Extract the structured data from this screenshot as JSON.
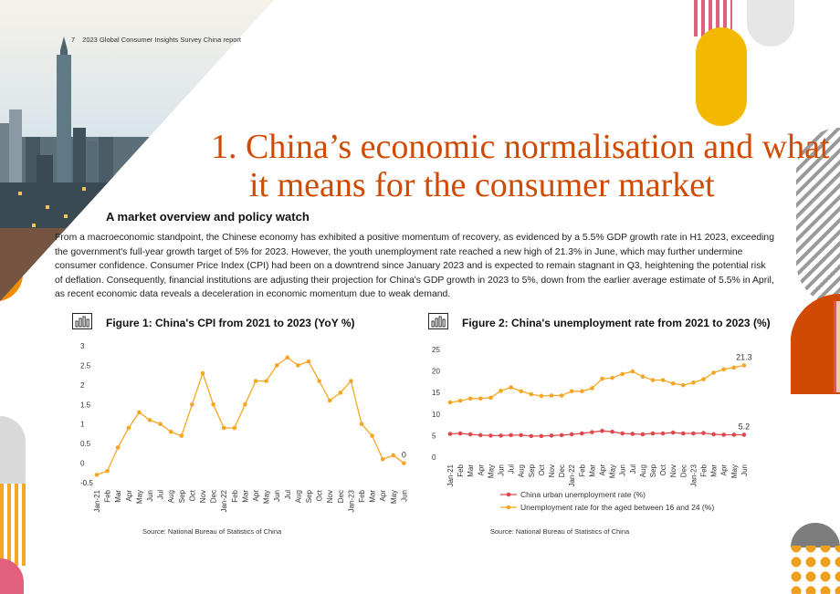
{
  "header": {
    "page_number": "7",
    "report_title": "2023 Global Consumer Insights Survey China report"
  },
  "section": {
    "number": "1.",
    "title_line1": "China’s economic normalisation and what",
    "title_line2": "it means for the consumer market"
  },
  "subheading": "A market overview and policy watch",
  "body_text": "From a macroeconomic standpoint, the Chinese economy has exhibited a positive momentum of recovery, as evidenced by a 5.5% GDP growth rate in H1 2023, exceeding the government's full-year growth target of 5% for 2023. However, the youth unemployment rate reached a new high of 21.3% in June, which may further undermine consumer confidence. Consumer Price Index (CPI) had been on a downtrend since January 2023 and is expected to remain stagnant in Q3, heightening the potential risk of deflation. Consequently, financial institutions are adjusting their projection for China's GDP growth in 2023 to 5%, down from the earlier average estimate of 5.5% in April, as recent economic data reveals a deceleration in economic momentum due to weak demand.",
  "figure1": {
    "title": "Figure 1: China's CPI from 2021 to 2023 (YoY %)",
    "source": "Source: National Bureau of Statistics of China"
  },
  "figure2": {
    "title": "Figure 2: China's unemployment rate from 2021 to 2023 (%)",
    "source": "Source: National Bureau of Statistics of China"
  },
  "colors": {
    "accent": "#d04a02",
    "cpi_line": "#f5a623",
    "urban_line": "#e0474c",
    "youth_line": "#f5a623",
    "pink": "#e0607e",
    "grey": "#d9d9d9"
  },
  "chart_data": [
    {
      "type": "line",
      "title": "Figure 1: China's CPI from 2021 to 2023 (YoY %)",
      "categories": [
        "Jan-21",
        "Feb",
        "Mar",
        "Apr",
        "May",
        "Jun",
        "Jul",
        "Aug",
        "Sep",
        "Oct",
        "Nov",
        "Dec",
        "Jan-22",
        "Feb",
        "Mar",
        "Apr",
        "May",
        "Jun",
        "Jul",
        "Aug",
        "Sep",
        "Oct",
        "Nov",
        "Dec",
        "Jan-23",
        "Feb",
        "Mar",
        "Apr",
        "May",
        "Jun"
      ],
      "series": [
        {
          "values": [
            -0.3,
            -0.2,
            0.4,
            0.9,
            1.3,
            1.1,
            1.0,
            0.8,
            0.7,
            1.5,
            2.3,
            1.5,
            0.9,
            0.9,
            1.5,
            2.1,
            2.1,
            2.5,
            2.7,
            2.5,
            2.6,
            2.1,
            1.6,
            1.8,
            2.1,
            1.0,
            0.7,
            0.1,
            0.2,
            0.0
          ]
        }
      ],
      "yticks": [
        "3",
        "2.5",
        "2",
        "1.5",
        "1",
        "0.5",
        "0",
        "-0.5"
      ],
      "ylim": [
        -0.5,
        3
      ],
      "data_labels": [
        {
          "index": 29,
          "text": "0"
        }
      ],
      "grid": false
    },
    {
      "type": "line",
      "title": "Figure 2: China's unemployment rate from 2021 to 2023 (%)",
      "categories": [
        "Jan-21",
        "Feb",
        "Mar",
        "Apr",
        "May",
        "Jun",
        "Jul",
        "Aug",
        "Sep",
        "Oct",
        "Nov",
        "Dec",
        "Jan-22",
        "Feb",
        "Mar",
        "Apr",
        "May",
        "Jun",
        "Jul",
        "Aug",
        "Sep",
        "Oct",
        "Nov",
        "Dec",
        "Jan-23",
        "Feb",
        "Mar",
        "Apr",
        "May",
        "Jun"
      ],
      "series": [
        {
          "name": "China urban unemployment rate (%)",
          "values": [
            5.4,
            5.5,
            5.3,
            5.1,
            5.0,
            5.0,
            5.1,
            5.1,
            4.9,
            4.9,
            5.0,
            5.1,
            5.3,
            5.5,
            5.8,
            6.1,
            5.9,
            5.5,
            5.4,
            5.3,
            5.5,
            5.5,
            5.7,
            5.5,
            5.5,
            5.6,
            5.3,
            5.2,
            5.2,
            5.2
          ]
        },
        {
          "name": "Unemployment rate for the aged between 16 and 24 (%)",
          "values": [
            12.7,
            13.1,
            13.6,
            13.6,
            13.8,
            15.4,
            16.2,
            15.3,
            14.6,
            14.2,
            14.3,
            14.3,
            15.3,
            15.3,
            16.0,
            18.2,
            18.4,
            19.3,
            19.9,
            18.7,
            17.9,
            17.9,
            17.1,
            16.7,
            17.3,
            18.1,
            19.6,
            20.4,
            20.8,
            21.3
          ]
        }
      ],
      "yticks": [
        "25",
        "20",
        "15",
        "10",
        "5",
        "0"
      ],
      "ylim": [
        0,
        25
      ],
      "data_labels": [
        {
          "series": 1,
          "index": 29,
          "text": "21.3"
        },
        {
          "series": 0,
          "index": 29,
          "text": "5.2"
        }
      ],
      "legend": "bottom",
      "grid": false
    }
  ]
}
